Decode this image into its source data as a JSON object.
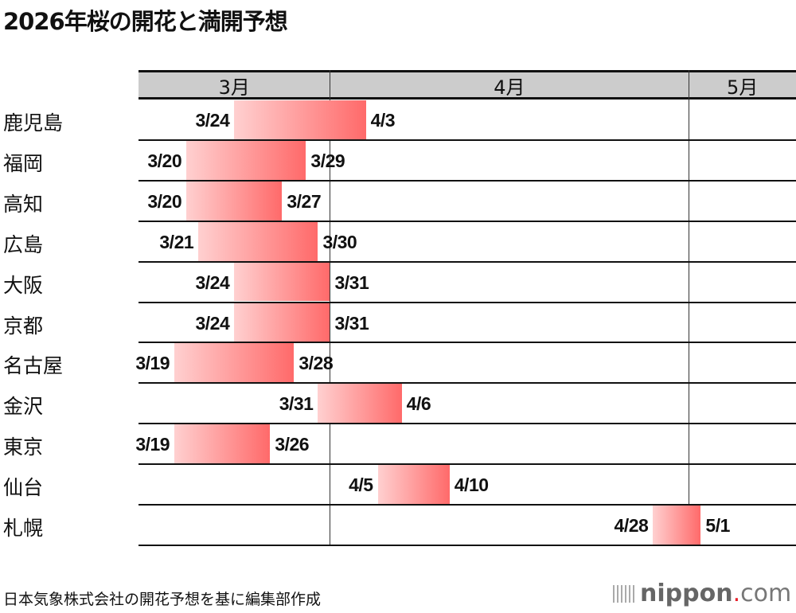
{
  "chart_data": {
    "type": "gantt",
    "title": "2026年桜の開花と満開予想",
    "months": [
      {
        "label": "3月",
        "start": "3/16",
        "end": "3/31"
      },
      {
        "label": "4月",
        "start": "4/1",
        "end": "4/30"
      },
      {
        "label": "5月",
        "start": "5/1",
        "end": "5/9"
      }
    ],
    "rows": [
      {
        "city": "鹿児島",
        "bloom": "3/24",
        "full": "4/3"
      },
      {
        "city": "福岡",
        "bloom": "3/20",
        "full": "3/29"
      },
      {
        "city": "高知",
        "bloom": "3/20",
        "full": "3/27"
      },
      {
        "city": "広島",
        "bloom": "3/21",
        "full": "3/30"
      },
      {
        "city": "大阪",
        "bloom": "3/24",
        "full": "3/31"
      },
      {
        "city": "京都",
        "bloom": "3/24",
        "full": "3/31"
      },
      {
        "city": "名古屋",
        "bloom": "3/19",
        "full": "3/28"
      },
      {
        "city": "金沢",
        "bloom": "3/31",
        "full": "4/6"
      },
      {
        "city": "東京",
        "bloom": "3/19",
        "full": "3/26"
      },
      {
        "city": "仙台",
        "bloom": "4/5",
        "full": "4/10"
      },
      {
        "city": "札幌",
        "bloom": "4/28",
        "full": "5/1"
      }
    ],
    "colors": {
      "bar_start": "#ffd0d0",
      "bar_end": "#ff6a6a",
      "header": "#cccccc"
    }
  },
  "source": "日本気象株式会社の開花予想を基に編集部作成",
  "logo": {
    "name": "nippon",
    "dot": ".",
    "suffix": "com"
  }
}
